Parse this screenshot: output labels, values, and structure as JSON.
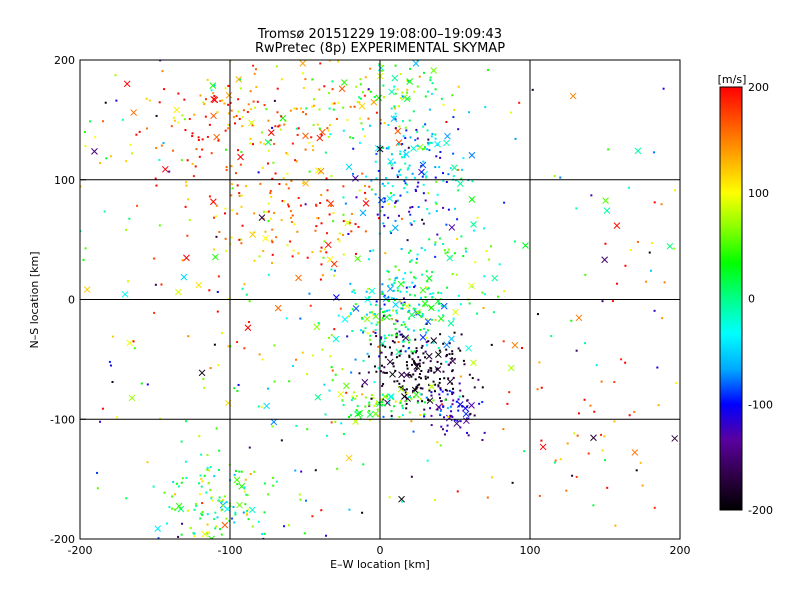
{
  "chart_data": {
    "type": "scatter",
    "title": "Tromsø 20151229 19:08:00–19:09:43",
    "subtitle": "RwPretec (8p) EXPERIMENTAL SKYMAP",
    "xlabel": "E–W location [km]",
    "ylabel": "N–S location [km]",
    "xlim": [
      -200,
      200
    ],
    "ylim": [
      -200,
      200
    ],
    "xticks": [
      -200,
      -100,
      0,
      100,
      200
    ],
    "yticks": [
      -200,
      -100,
      0,
      100,
      200
    ],
    "grid": true,
    "markers": [
      "dot",
      "x"
    ],
    "colorbar": {
      "label": "[m/s]",
      "min": -200,
      "max": 200,
      "ticks": [
        200,
        100,
        0,
        -100,
        -200
      ],
      "colormap": [
        "#000000",
        "#300048",
        "#5a00a0",
        "#0000ff",
        "#00aaff",
        "#00ffff",
        "#00ff88",
        "#00ff00",
        "#88ff00",
        "#ffff00",
        "#ffaa00",
        "#ff5500",
        "#ff0000"
      ]
    },
    "clusters": [
      {
        "x": -105,
        "y": 150,
        "sx": 28,
        "sy": 28,
        "n": 130,
        "v": 170,
        "sv": 60
      },
      {
        "x": -40,
        "y": 165,
        "sx": 30,
        "sy": 25,
        "n": 80,
        "v": 110,
        "sv": 60
      },
      {
        "x": -60,
        "y": 70,
        "sx": 35,
        "sy": 35,
        "n": 170,
        "v": 160,
        "sv": 50
      },
      {
        "x": 10,
        "y": 180,
        "sx": 20,
        "sy": 15,
        "n": 60,
        "v": 40,
        "sv": 40
      },
      {
        "x": 20,
        "y": 120,
        "sx": 18,
        "sy": 22,
        "n": 130,
        "v": -50,
        "sv": 40
      },
      {
        "x": 15,
        "y": 80,
        "sx": 22,
        "sy": 20,
        "n": 60,
        "v": -80,
        "sv": 50
      },
      {
        "x": 10,
        "y": -10,
        "sx": 20,
        "sy": 18,
        "n": 220,
        "v": -10,
        "sv": 60
      },
      {
        "x": 50,
        "y": 30,
        "sx": 25,
        "sy": 25,
        "n": 60,
        "v": 20,
        "sv": 40
      },
      {
        "x": 25,
        "y": -60,
        "sx": 18,
        "sy": 15,
        "n": 200,
        "v": -185,
        "sv": 20
      },
      {
        "x": 50,
        "y": -95,
        "sx": 10,
        "sy": 10,
        "n": 60,
        "v": -120,
        "sv": 30
      },
      {
        "x": 5,
        "y": -88,
        "sx": 18,
        "sy": 8,
        "n": 80,
        "v": 40,
        "sv": 40
      },
      {
        "x": -110,
        "y": -170,
        "sx": 20,
        "sy": 18,
        "n": 130,
        "v": 30,
        "sv": 60
      },
      {
        "x": -60,
        "y": -60,
        "sx": 40,
        "sy": 40,
        "n": 60,
        "v": 20,
        "sv": 80
      },
      {
        "x": 140,
        "y": -110,
        "sx": 40,
        "sy": 50,
        "n": 40,
        "v": 170,
        "sv": 40
      },
      {
        "x": 160,
        "y": 50,
        "sx": 30,
        "sy": 40,
        "n": 20,
        "v": 150,
        "sv": 80
      },
      {
        "x": -150,
        "y": 60,
        "sx": 40,
        "sy": 70,
        "n": 40,
        "v": 120,
        "sv": 80
      }
    ]
  }
}
